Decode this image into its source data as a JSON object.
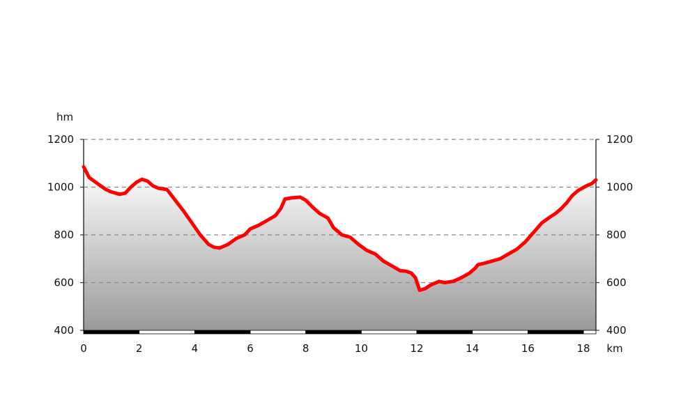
{
  "chart_data": {
    "type": "area",
    "title": "",
    "xlabel": "km",
    "ylabel": "hm",
    "xlim": [
      0,
      18.45
    ],
    "ylim": [
      400,
      1200
    ],
    "x_ticks": [
      0,
      2,
      4,
      6,
      8,
      10,
      12,
      14,
      16,
      18
    ],
    "y_ticks": [
      400,
      600,
      800,
      1000,
      1200
    ],
    "x_tick_labels": [
      "0",
      "2",
      "4",
      "6",
      "8",
      "10",
      "12",
      "14",
      "16",
      "18"
    ],
    "y_tick_labels": [
      "400",
      "600",
      "800",
      "1000",
      "1200"
    ],
    "y_ticks_right": [
      400,
      600,
      800,
      1000,
      1200
    ],
    "y_tick_labels_right": [
      "400",
      "600",
      "800",
      "1000",
      "1200"
    ],
    "grid": "horizontal dashed",
    "colors": {
      "line": "#ff0000",
      "fill_top": "#ffffff",
      "fill_bottom": "#9a9a9a",
      "grid": "#888888",
      "axis": "#333333"
    },
    "series": [
      {
        "x": [
          0,
          0.2,
          0.5,
          0.8,
          1.0,
          1.3,
          1.5,
          1.7,
          1.9,
          2.1,
          2.3,
          2.5,
          2.7,
          3.0,
          3.2,
          3.4,
          3.6,
          3.9,
          4.2,
          4.5,
          4.7,
          4.9,
          5.2,
          5.5,
          5.8,
          6.0,
          6.3,
          6.6,
          6.9,
          7.1,
          7.25,
          7.5,
          7.8,
          8.0,
          8.3,
          8.5,
          8.8,
          9.0,
          9.3,
          9.6,
          9.9,
          10.2,
          10.5,
          10.8,
          11.1,
          11.4,
          11.6,
          11.8,
          11.95,
          12.1,
          12.3,
          12.5,
          12.8,
          13.0,
          13.3,
          13.6,
          13.9,
          14.1,
          14.2,
          14.4,
          14.7,
          15.0,
          15.3,
          15.6,
          15.9,
          16.2,
          16.5,
          16.8,
          17.0,
          17.2,
          17.4,
          17.6,
          17.8,
          18.1,
          18.3,
          18.45
        ],
        "y": [
          1085,
          1040,
          1015,
          990,
          980,
          970,
          975,
          1000,
          1020,
          1033,
          1025,
          1005,
          995,
          990,
          960,
          930,
          900,
          850,
          800,
          760,
          748,
          745,
          760,
          785,
          800,
          825,
          840,
          860,
          880,
          910,
          950,
          955,
          958,
          945,
          910,
          890,
          870,
          830,
          800,
          790,
          760,
          735,
          720,
          690,
          670,
          650,
          648,
          640,
          620,
          568,
          575,
          590,
          605,
          600,
          605,
          620,
          640,
          660,
          675,
          680,
          690,
          700,
          720,
          740,
          770,
          810,
          850,
          875,
          890,
          910,
          935,
          965,
          985,
          1005,
          1015,
          1030
        ]
      }
    ]
  }
}
